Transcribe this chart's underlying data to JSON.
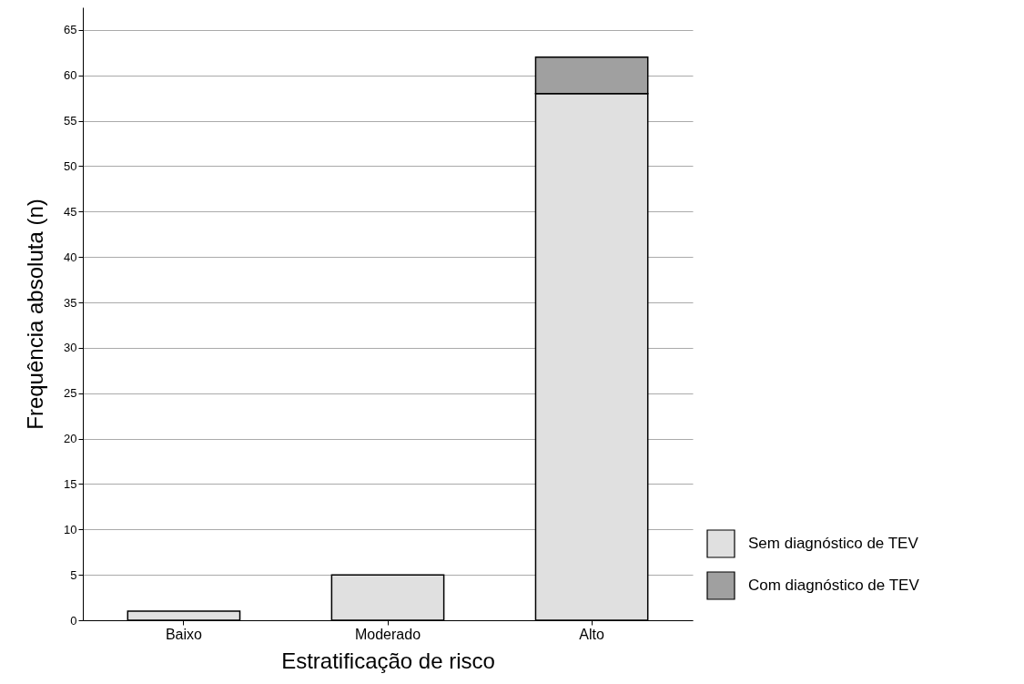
{
  "chart_data": {
    "type": "bar",
    "stacked": true,
    "xlabel": "Estratificação de risco",
    "ylabel": "Frequência absoluta (n)",
    "categories": [
      "Baixo",
      "Moderado",
      "Alto"
    ],
    "series": [
      {
        "name": "Sem diagnóstico de TEV",
        "color": "#e0e0e0",
        "values": [
          1,
          5,
          58
        ]
      },
      {
        "name": "Com diagnóstico de TEV",
        "color": "#a0a0a0",
        "values": [
          null,
          null,
          4
        ]
      }
    ],
    "ylim": [
      0,
      67.5
    ],
    "yticks": [
      0,
      5,
      10,
      15,
      20,
      25,
      30,
      35,
      40,
      45,
      50,
      55,
      60,
      65
    ],
    "grid": "y",
    "legend": "bottom right"
  }
}
